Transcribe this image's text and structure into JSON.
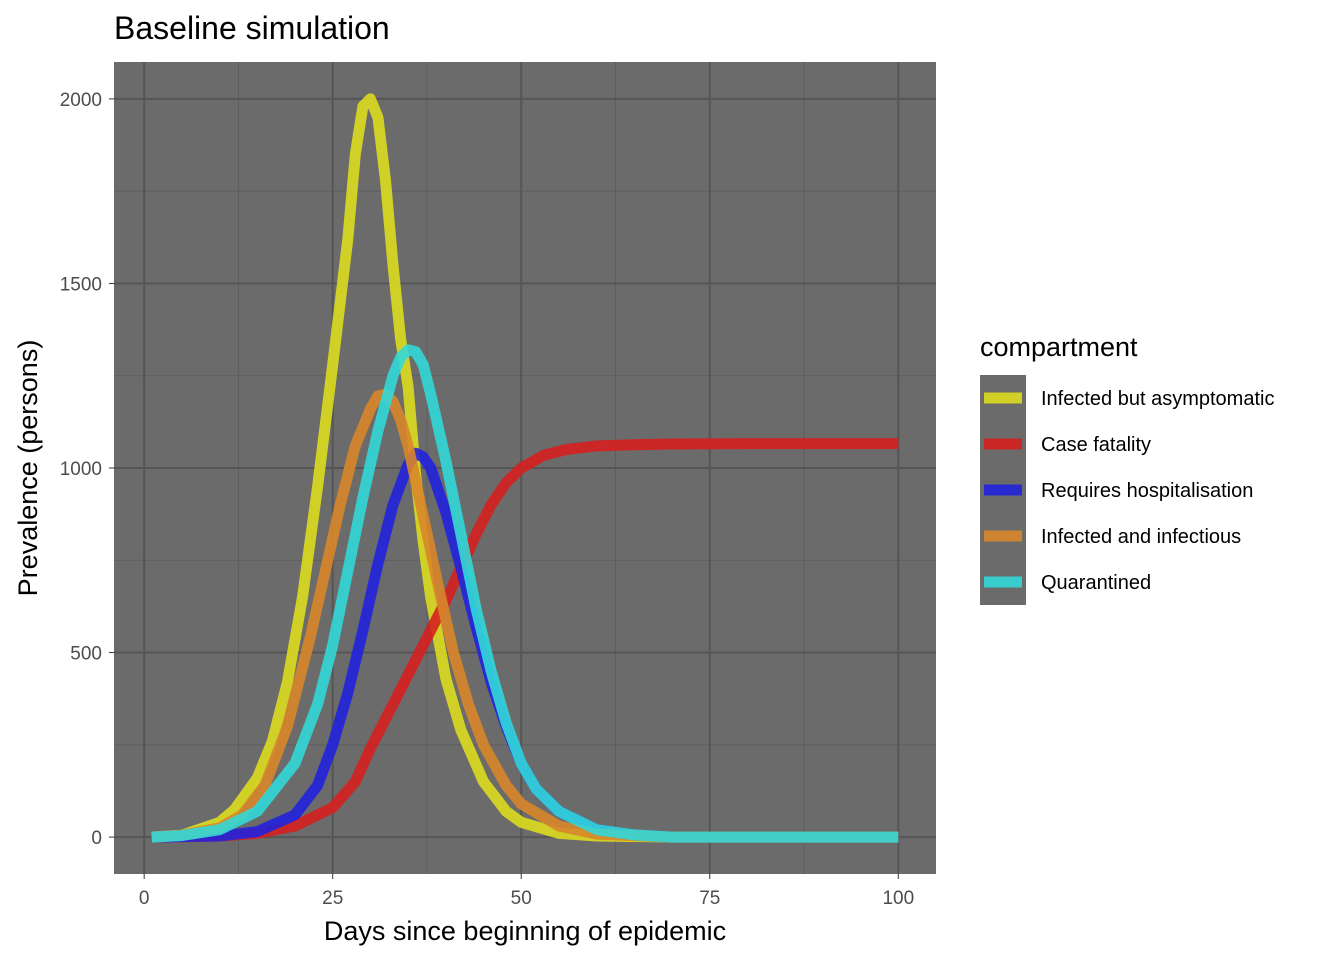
{
  "chart_data": {
    "type": "line",
    "title": "Baseline simulation",
    "xlabel": "Days since beginning of epidemic",
    "ylabel": "Prevalence (persons)",
    "xlim": [
      -4,
      105
    ],
    "ylim": [
      -100,
      2100
    ],
    "x_ticks": [
      0,
      25,
      50,
      75,
      100
    ],
    "y_ticks": [
      0,
      500,
      1000,
      1500,
      2000
    ],
    "grid": true,
    "panel_background": "#6b6b6b",
    "legend": {
      "title": "compartment",
      "position": "right"
    },
    "series": [
      {
        "name": "Infected but asymptomatic",
        "color": "#dcdc20",
        "x": [
          1,
          5,
          10,
          12,
          15,
          17,
          19,
          21,
          23,
          25,
          27,
          28,
          29,
          30,
          31,
          32,
          33,
          34,
          35,
          36,
          37,
          38,
          40,
          42,
          45,
          48,
          50,
          55,
          60,
          70,
          80,
          100
        ],
        "y": [
          0,
          5,
          40,
          75,
          160,
          260,
          420,
          650,
          950,
          1280,
          1620,
          1850,
          1980,
          2000,
          1950,
          1780,
          1550,
          1350,
          1220,
          980,
          800,
          650,
          430,
          290,
          150,
          70,
          40,
          10,
          3,
          0,
          0,
          0
        ]
      },
      {
        "name": "Case fatality",
        "color": "#d62020",
        "x": [
          1,
          10,
          15,
          20,
          25,
          28,
          30,
          32,
          34,
          36,
          38,
          40,
          42,
          44,
          46,
          48,
          50,
          53,
          56,
          60,
          65,
          70,
          80,
          90,
          100
        ],
        "y": [
          0,
          3,
          10,
          30,
          80,
          150,
          240,
          320,
          400,
          480,
          560,
          640,
          730,
          820,
          900,
          960,
          1000,
          1035,
          1050,
          1060,
          1063,
          1065,
          1066,
          1066,
          1066
        ]
      },
      {
        "name": "Requires hospitalisation",
        "color": "#2222dd",
        "x": [
          1,
          10,
          15,
          20,
          23,
          25,
          27,
          29,
          31,
          33,
          35,
          36,
          37,
          38,
          40,
          42,
          44,
          46,
          48,
          50,
          52,
          55,
          60,
          65,
          70,
          100
        ],
        "y": [
          0,
          3,
          15,
          60,
          140,
          250,
          390,
          560,
          740,
          900,
          1010,
          1040,
          1030,
          1000,
          880,
          730,
          570,
          420,
          300,
          200,
          130,
          70,
          20,
          5,
          0,
          0
        ]
      },
      {
        "name": "Infected and infectious",
        "color": "#d8862a",
        "x": [
          1,
          5,
          10,
          13,
          16,
          19,
          22,
          24,
          26,
          28,
          30,
          31,
          32,
          33,
          34,
          35,
          37,
          39,
          41,
          43,
          45,
          48,
          50,
          55,
          60,
          70,
          100
        ],
        "y": [
          0,
          5,
          25,
          60,
          140,
          300,
          540,
          720,
          900,
          1060,
          1160,
          1195,
          1200,
          1180,
          1130,
          1060,
          870,
          680,
          500,
          360,
          250,
          140,
          90,
          30,
          8,
          0,
          0
        ]
      },
      {
        "name": "Quarantined",
        "color": "#33d8d8",
        "x": [
          1,
          5,
          10,
          15,
          20,
          23,
          25,
          27,
          29,
          31,
          33,
          34,
          35,
          36,
          37,
          38,
          40,
          42,
          44,
          46,
          48,
          50,
          52,
          55,
          60,
          65,
          70,
          100
        ],
        "y": [
          0,
          4,
          20,
          70,
          200,
          360,
          520,
          720,
          920,
          1100,
          1250,
          1300,
          1320,
          1315,
          1280,
          1200,
          1020,
          820,
          620,
          450,
          310,
          200,
          130,
          70,
          20,
          6,
          0,
          0
        ]
      }
    ]
  }
}
